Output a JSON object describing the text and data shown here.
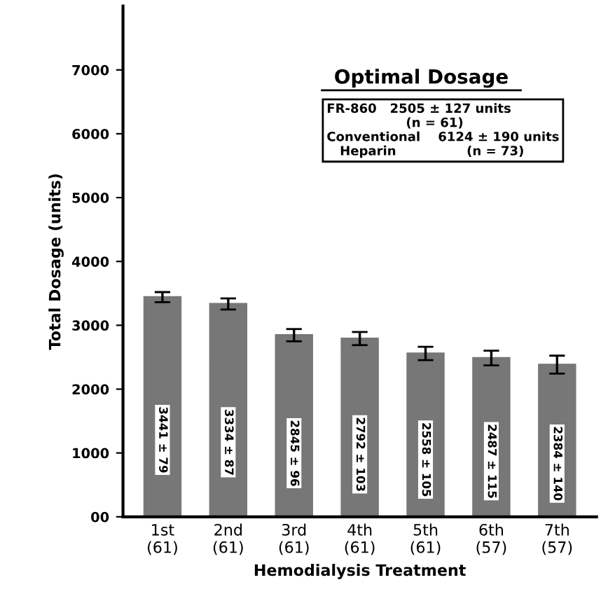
{
  "chart_data": {
    "type": "bar",
    "xlabel": "Hemodialysis Treatment",
    "ylabel": "Total Dosage (units)",
    "categories": [
      "1st\n(61)",
      "2nd\n(61)",
      "3rd\n(61)",
      "4th\n(61)",
      "5th\n(61)",
      "6th\n(57)",
      "7th\n(57)"
    ],
    "values": [
      3441,
      3334,
      2845,
      2792,
      2558,
      2487,
      2384
    ],
    "errors": [
      79,
      87,
      96,
      103,
      105,
      115,
      140
    ],
    "value_labels": [
      "3441 ± 79",
      "3334 ± 87",
      "2845 ± 96",
      "2792 ± 103",
      "2558 ± 105",
      "2487 ± 115",
      "2384 ± 140"
    ],
    "color": "#777777",
    "ylim": [
      0,
      8000
    ],
    "yticks": [
      {
        "value": 0,
        "label": "00"
      },
      1000,
      2000,
      3000,
      4000,
      5000,
      6000,
      7000
    ],
    "grid": false,
    "annotations": [
      "Optimal Dosage",
      "FR-860   2505 ± 127 units\n                  (n = 61)\nConventional    6124 ± 190 units\n   Heparin                (n = 73)"
    ]
  }
}
